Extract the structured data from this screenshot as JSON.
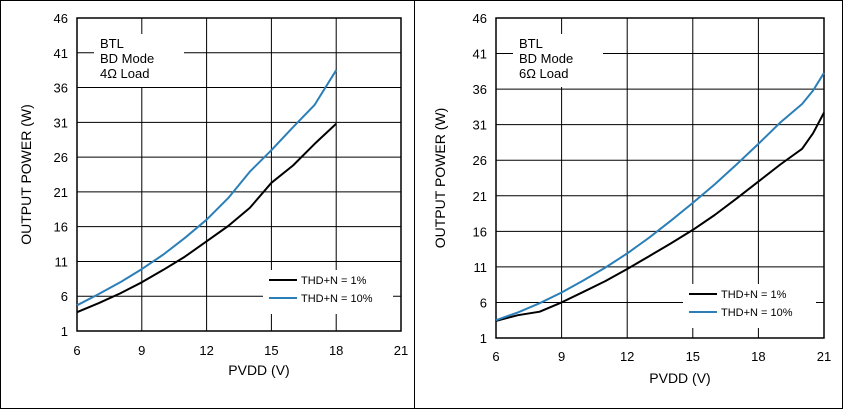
{
  "chart_data": [
    {
      "type": "line",
      "xlabel": "PVDD (V)",
      "ylabel": "OUTPUT POWER (W)",
      "xlim": [
        6,
        21
      ],
      "ylim": [
        1,
        46
      ],
      "xticks": [
        "6",
        "9",
        "12",
        "15",
        "18",
        "21"
      ],
      "yticks": [
        "1",
        "6",
        "11",
        "16",
        "21",
        "26",
        "31",
        "36",
        "41",
        "46"
      ],
      "annotation": [
        "BTL",
        "BD Mode",
        "4Ω Load"
      ],
      "legend_position": "bottom-right",
      "grid": true,
      "series": [
        {
          "name": "THD+N = 1%",
          "color": "#000000",
          "x": [
            6,
            7,
            8,
            9,
            10,
            11,
            12,
            13,
            14,
            15,
            16,
            17,
            18
          ],
          "y": [
            3.7,
            5.0,
            6.4,
            8.0,
            9.8,
            11.7,
            13.9,
            16.1,
            18.7,
            22.3,
            24.8,
            27.9,
            30.8
          ]
        },
        {
          "name": "THD+N = 10%",
          "color": "#2b7fb8",
          "x": [
            6,
            7,
            8,
            9,
            10,
            11,
            12,
            13,
            14,
            15,
            16,
            17,
            18
          ],
          "y": [
            4.7,
            6.3,
            8.0,
            9.9,
            12.0,
            14.4,
            17.0,
            20.1,
            23.9,
            27.0,
            30.3,
            33.5,
            38.5
          ]
        }
      ]
    },
    {
      "type": "line",
      "xlabel": "PVDD (V)",
      "ylabel": "OUTPUT POWER (W)",
      "xlim": [
        6,
        21
      ],
      "ylim": [
        1,
        46
      ],
      "xticks": [
        "6",
        "9",
        "12",
        "15",
        "18",
        "21"
      ],
      "yticks": [
        "1",
        "6",
        "11",
        "16",
        "21",
        "26",
        "31",
        "36",
        "41",
        "46"
      ],
      "annotation": [
        "BTL",
        "BD Mode",
        "6Ω Load"
      ],
      "legend_position": "bottom-right",
      "grid": true,
      "series": [
        {
          "name": "THD+N = 1%",
          "color": "#000000",
          "x": [
            6,
            7,
            8,
            9,
            10,
            11,
            12,
            13,
            14,
            15,
            16,
            17,
            18,
            19,
            20,
            20.5,
            21
          ],
          "y": [
            3.4,
            4.2,
            4.7,
            6.0,
            7.5,
            9.0,
            10.7,
            12.5,
            14.3,
            16.2,
            18.3,
            20.6,
            23.0,
            25.4,
            27.6,
            29.8,
            32.7
          ]
        },
        {
          "name": "THD+N = 10%",
          "color": "#2b7fb8",
          "x": [
            6,
            7,
            8,
            9,
            10,
            11,
            12,
            13,
            14,
            15,
            16,
            17,
            18,
            19,
            20,
            20.5,
            21
          ],
          "y": [
            3.5,
            4.6,
            5.9,
            7.4,
            9.1,
            10.9,
            12.9,
            15.1,
            17.5,
            20.0,
            22.6,
            25.4,
            28.3,
            31.3,
            33.9,
            35.8,
            38.3
          ]
        }
      ]
    }
  ]
}
